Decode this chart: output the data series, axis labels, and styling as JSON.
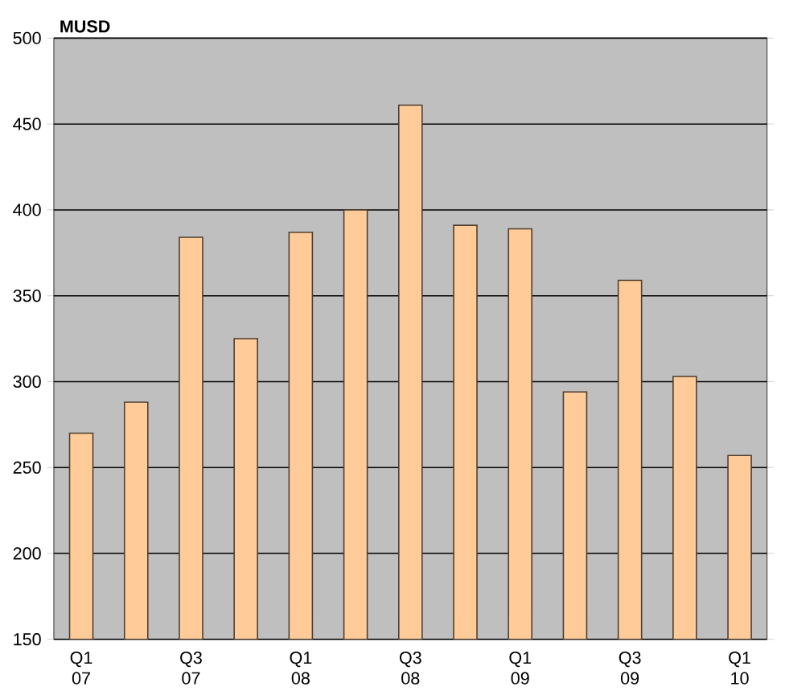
{
  "chart_data": {
    "type": "bar",
    "ylabel": "MUSD",
    "categories": [
      "Q1 07",
      null,
      "Q3 07",
      null,
      "Q1 08",
      null,
      "Q3 08",
      null,
      "Q1 09",
      null,
      "Q3 09",
      null,
      "Q1 10"
    ],
    "values": [
      270,
      288,
      384,
      325,
      387,
      400,
      461,
      391,
      389,
      294,
      359,
      303,
      257
    ],
    "color": "#ffcc99",
    "ylim": [
      150,
      500
    ],
    "yticks": [
      150,
      200,
      250,
      300,
      350,
      400,
      450,
      500
    ],
    "grid": "y"
  }
}
